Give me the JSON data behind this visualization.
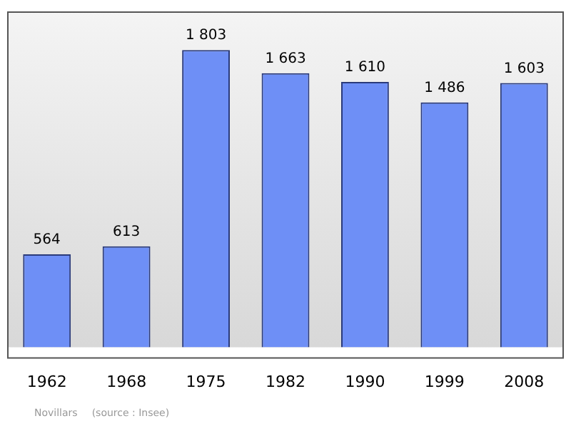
{
  "chart_data": {
    "type": "bar",
    "categories": [
      "1962",
      "1968",
      "1975",
      "1982",
      "1990",
      "1999",
      "2008"
    ],
    "values": [
      564,
      613,
      1803,
      1663,
      1610,
      1486,
      1603
    ],
    "value_labels": [
      "564",
      "613",
      "1 803",
      "1 663",
      "1 610",
      "1 486",
      "1 603"
    ],
    "color": "#6e8ff6",
    "annotations": [
      "Novillars",
      "(source : Insee)"
    ]
  }
}
